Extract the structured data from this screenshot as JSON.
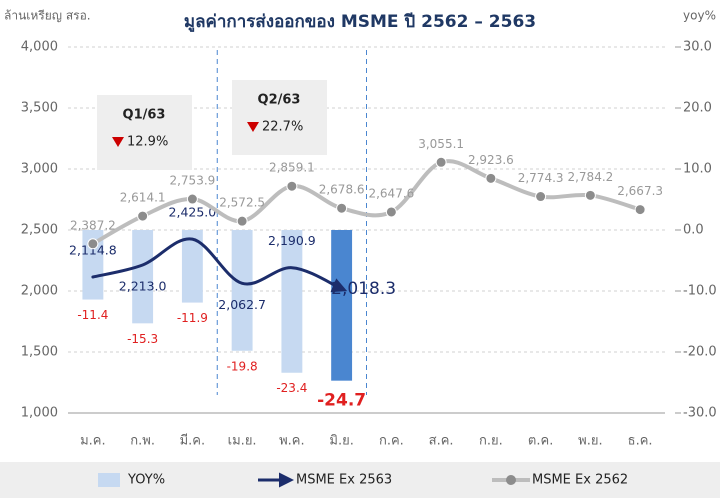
{
  "chart_data": {
    "type": "combo",
    "title": "มูลค่าการส่งออกของ MSME ปี 2562 – 2563",
    "y_label": "ล้านเหรียญ สรอ.",
    "y2_label": "yoy%",
    "categories": [
      "ม.ค.",
      "ก.พ.",
      "มี.ค.",
      "เม.ย.",
      "พ.ค.",
      "มิ.ย.",
      "ก.ค.",
      "ส.ค.",
      "ก.ย.",
      "ต.ค.",
      "พ.ย.",
      "ธ.ค."
    ],
    "ylim": [
      1000,
      4000
    ],
    "yticks": [
      {
        "value": 1000,
        "label": "1,000"
      },
      {
        "value": 1500,
        "label": "1,500"
      },
      {
        "value": 2000,
        "label": "2,000"
      },
      {
        "value": 2500,
        "label": "2,500"
      },
      {
        "value": 3000,
        "label": "3,000"
      },
      {
        "value": 3500,
        "label": "3,500"
      },
      {
        "value": 4000,
        "label": "4,000"
      }
    ],
    "y2lim": [
      -30,
      30
    ],
    "y2ticks": [
      {
        "value": 30,
        "label": "30.0"
      },
      {
        "value": 20,
        "label": "20.0"
      },
      {
        "value": 10,
        "label": "10.0"
      },
      {
        "value": 0,
        "label": "0.0"
      },
      {
        "value": -10,
        "label": "-10.0"
      },
      {
        "value": -20,
        "label": "-20.0"
      },
      {
        "value": -30,
        "label": "-30.0"
      }
    ],
    "grid": true,
    "series": [
      {
        "name": "YOY%",
        "kind": "bar",
        "axis": "y2",
        "color": "#c6d9f1",
        "colors": [
          "#c6d9f1",
          "#c6d9f1",
          "#c6d9f1",
          "#c6d9f1",
          "#c6d9f1",
          "#4a86d0",
          null,
          null,
          null,
          null,
          null,
          null
        ],
        "values": [
          -11.4,
          -15.3,
          -11.9,
          -19.8,
          -23.4,
          -24.7,
          null,
          null,
          null,
          null,
          null,
          null
        ]
      },
      {
        "name": "MSME Ex 2563",
        "kind": "line",
        "color": "#1c2d6b",
        "values": [
          2114.8,
          2213.0,
          2425.0,
          2062.7,
          2190.9,
          2018.3,
          null,
          null,
          null,
          null,
          null,
          null
        ],
        "value_labels": [
          "2,114.8",
          "2,213.0",
          "2,425.0",
          "2,062.7",
          "2,190.9",
          "2,018.3",
          null,
          null,
          null,
          null,
          null,
          null
        ]
      },
      {
        "name": "MSME Ex 2562",
        "kind": "line",
        "color": "#bdbdbd",
        "values": [
          2387.2,
          2614.1,
          2753.9,
          2572.5,
          2859.1,
          2678.6,
          2647.6,
          3055.1,
          2923.6,
          2774.3,
          2784.2,
          2667.3
        ],
        "value_labels": [
          "2,387.2",
          "2,614.1",
          "2,753.9",
          "2,572.5",
          "2,859.1",
          "2,678.6",
          "2,647.6",
          "3,055.1",
          "2,923.6",
          "2,774.3",
          "2,784.2",
          "2,667.3"
        ]
      }
    ],
    "annotations": [
      {
        "title": "Q1/63",
        "text": "12.9%"
      },
      {
        "title": "Q2/63",
        "text": "22.7%"
      }
    ]
  }
}
